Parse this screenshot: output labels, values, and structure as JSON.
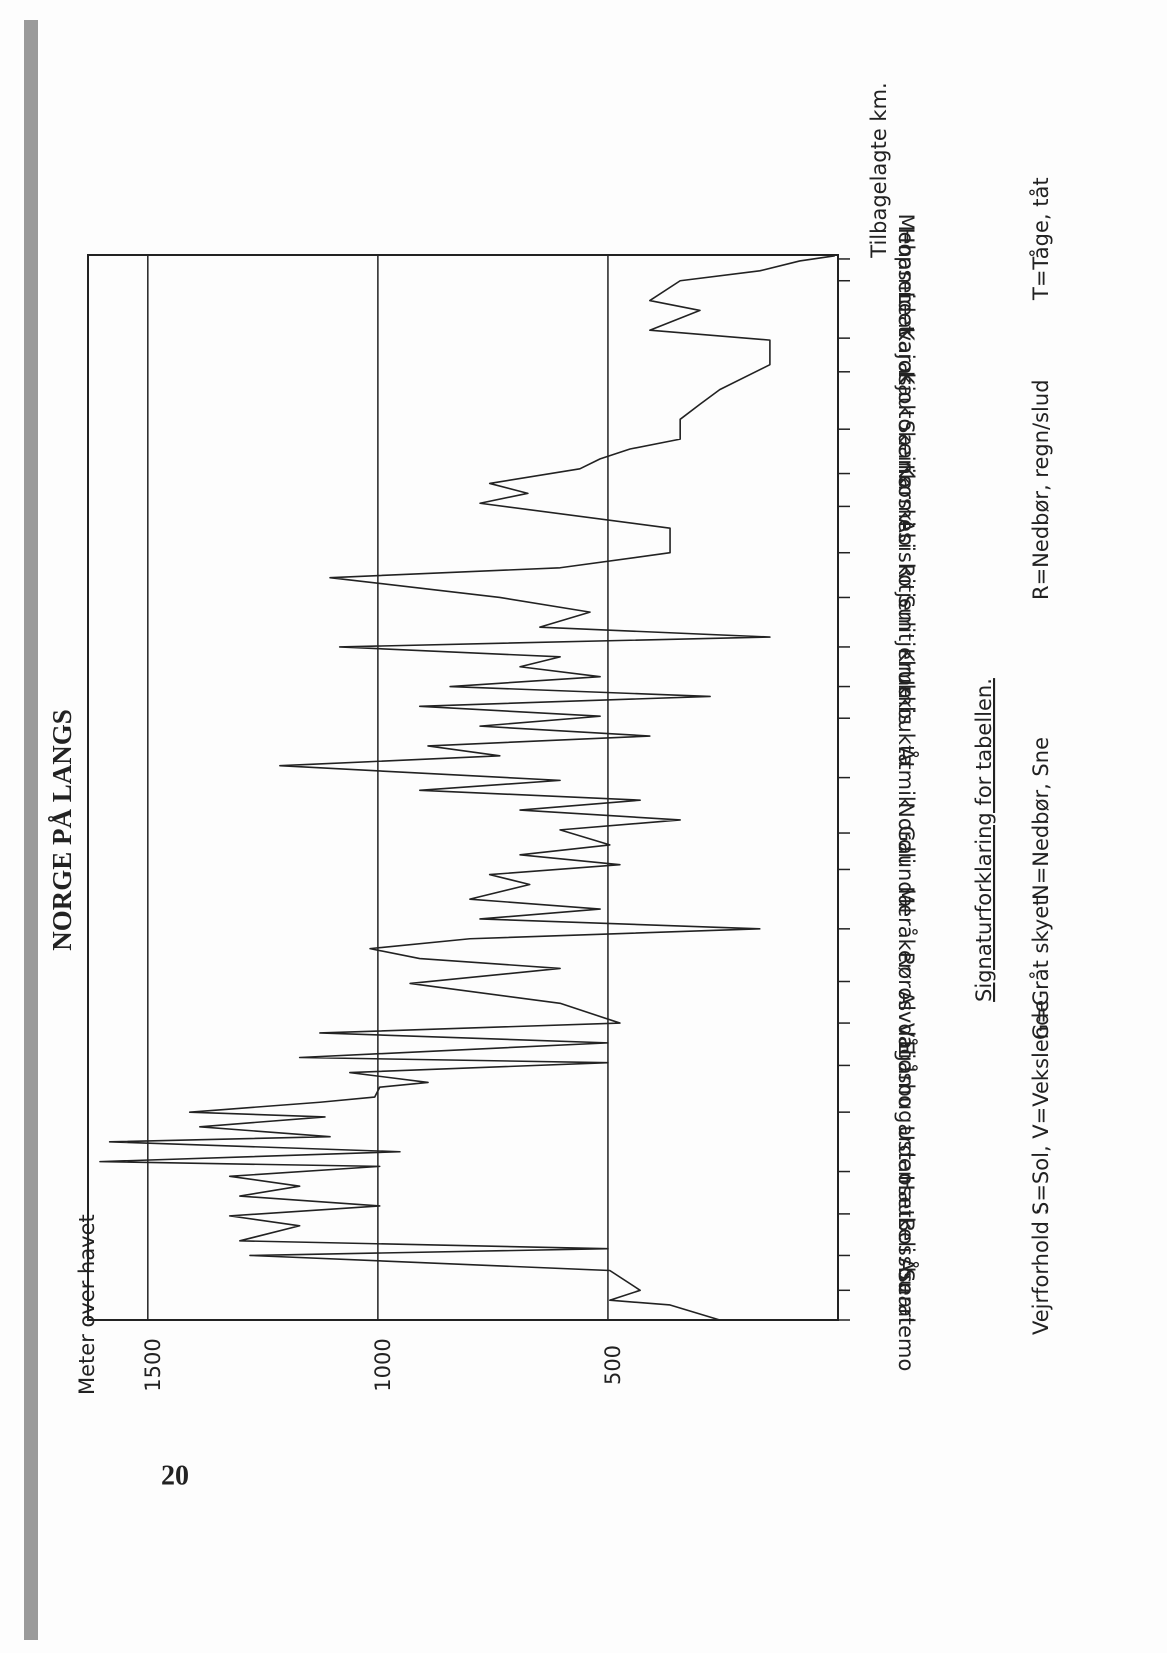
{
  "page_number": "20",
  "chart_data": {
    "type": "line",
    "title": "NORGE PÅ LANGS",
    "y_label": "Meter over havet",
    "x_label": "Tilbagelagte km.",
    "ylim": [
      0,
      1630
    ],
    "yticks": [
      500,
      1000,
      1500
    ],
    "xlim": [
      0,
      2690
    ],
    "xticks": [
      {
        "value": 0,
        "label": "Snartemo"
      },
      {
        "value": 75,
        "label": "Åseral"
      },
      {
        "value": 163,
        "label": "Bossbu"
      },
      {
        "value": 268,
        "label": "Haukeli"
      },
      {
        "value": 375,
        "label": "Ustaoset"
      },
      {
        "value": 525,
        "label": "Eidsbugarden"
      },
      {
        "value": 643,
        "label": "Vågåmo"
      },
      {
        "value": 750,
        "label": "Alvdal"
      },
      {
        "value": 855,
        "label": "Røros"
      },
      {
        "value": 988,
        "label": "Meråker"
      },
      {
        "value": 1138,
        "label": "Gaundal"
      },
      {
        "value": 1230,
        "label": "Nordli"
      },
      {
        "value": 1370,
        "label": "Åtmik"
      },
      {
        "value": 1520,
        "label": "Umbukta"
      },
      {
        "value": 1600,
        "label": "Krukkis"
      },
      {
        "value": 1700,
        "label": "Sulitjelma"
      },
      {
        "value": 1825,
        "label": "Ritjem"
      },
      {
        "value": 1938,
        "label": "Abisko"
      },
      {
        "value": 2055,
        "label": "Karmesi"
      },
      {
        "value": 2138,
        "label": "Saarikoski"
      },
      {
        "value": 2250,
        "label": "Kautokeino"
      },
      {
        "value": 2395,
        "label": "Karasjok"
      },
      {
        "value": 2480,
        "label": "Leavajok"
      },
      {
        "value": 2625,
        "label": "Hopseidet"
      },
      {
        "value": 2680,
        "label": "Mehamn"
      }
    ],
    "grid": true,
    "color": "#222222",
    "x": [
      0,
      38,
      50,
      75,
      125,
      163,
      180,
      200,
      238,
      263,
      288,
      313,
      338,
      363,
      388,
      400,
      425,
      450,
      463,
      488,
      513,
      525,
      550,
      563,
      588,
      600,
      625,
      650,
      663,
      700,
      725,
      750,
      800,
      850,
      888,
      913,
      938,
      963,
      988,
      1013,
      1038,
      1063,
      1100,
      1125,
      1150,
      1175,
      1200,
      1238,
      1263,
      1288,
      1313,
      1338,
      1363,
      1400,
      1425,
      1450,
      1475,
      1500,
      1525,
      1550,
      1575,
      1600,
      1625,
      1650,
      1675,
      1700,
      1725,
      1750,
      1788,
      1825,
      1875,
      1900,
      1938,
      2000,
      2063,
      2088,
      2113,
      2150,
      2175,
      2200,
      2225,
      2275,
      2313,
      2350,
      2413,
      2475,
      2500,
      2550,
      2575,
      2625,
      2650,
      2675,
      2688
    ],
    "values": [
      257,
      365,
      496,
      430,
      496,
      1278,
      500,
      1300,
      1170,
      1322,
      996,
      1300,
      1170,
      1322,
      996,
      1604,
      952,
      1583,
      1104,
      1387,
      1115,
      1409,
      1126,
      1007,
      996,
      891,
      1061,
      500,
      1170,
      500,
      1126,
      474,
      604,
      930,
      604,
      909,
      1017,
      800,
      170,
      778,
      517,
      800,
      670,
      757,
      474,
      691,
      496,
      604,
      343,
      691,
      430,
      909,
      604,
      1213,
      735,
      891,
      409,
      778,
      517,
      909,
      278,
      843,
      517,
      691,
      604,
      1083,
      148,
      648,
      539,
      735,
      1104,
      604,
      365,
      365,
      778,
      674,
      757,
      561,
      517,
      452,
      343,
      343,
      300,
      257,
      148,
      148,
      409,
      300,
      409,
      343,
      170,
      83,
      7
    ]
  },
  "legend": {
    "heading": "Signaturforklaring for tabellen.",
    "label": "Vejrforhold :",
    "items": [
      "S=Sol, V=Vekslende",
      "G=Gråt skyet",
      "N=Nedbør, Sne",
      "R=Nedbør, regn/slud",
      "T=Tåge, tåt"
    ]
  }
}
